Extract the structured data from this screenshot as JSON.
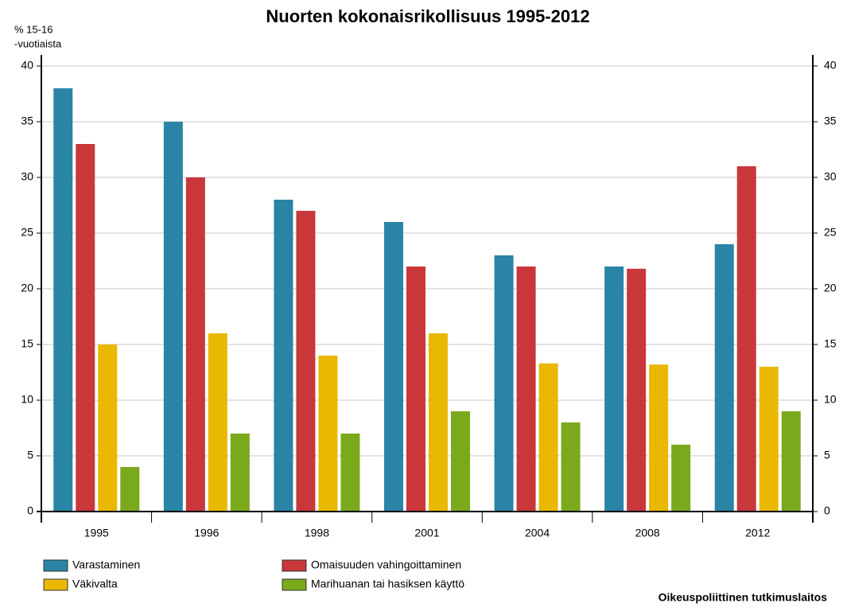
{
  "chart_data": {
    "type": "bar",
    "title": "Nuorten kokonaisrikollisuus 1995-2012",
    "y_label": [
      "% 15-16",
      "-vuotiaista"
    ],
    "source": "Oikeuspoliittinen tutkimuslaitos",
    "categories": [
      "1995",
      "1996",
      "1998",
      "2001",
      "2004",
      "2008",
      "2012"
    ],
    "series": [
      {
        "name": "Varastaminen",
        "color": "#2984a5",
        "values": [
          38,
          35,
          28,
          26,
          23,
          22,
          24
        ]
      },
      {
        "name": "Omaisuuden vahingoittaminen",
        "color": "#c9373a",
        "values": [
          33,
          30,
          27,
          22,
          22,
          21.8,
          31
        ]
      },
      {
        "name": "Väkivalta",
        "color": "#e9b800",
        "values": [
          15,
          16,
          14,
          16,
          13.3,
          13.2,
          13
        ]
      },
      {
        "name": "Marihuanan tai hasiksen käyttö",
        "color": "#7aa91b",
        "values": [
          4,
          7,
          7,
          9,
          8,
          6,
          9
        ]
      }
    ],
    "ylim": [
      0,
      40
    ],
    "yticks": [
      0,
      5,
      10,
      15,
      20,
      25,
      30,
      35,
      40
    ],
    "y2lim": [
      0,
      40
    ],
    "y2ticks": [
      0,
      5,
      10,
      15,
      20,
      25,
      30,
      35,
      40
    ],
    "grid": true
  }
}
